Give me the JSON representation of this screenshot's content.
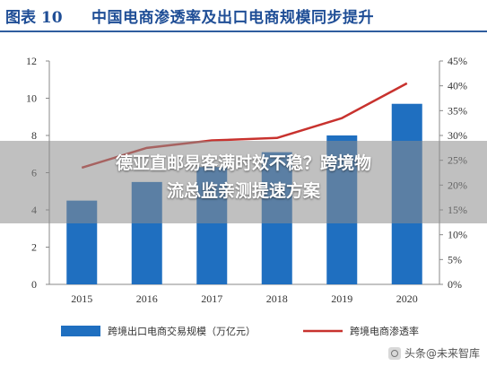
{
  "header": {
    "figure_label": "图表 10",
    "title": "中国电商渗透率及出口电商规模同步提升"
  },
  "overlay": {
    "line1": "德亚直邮易客满时效不稳？跨境物",
    "line2": "流总监亲测提速方案"
  },
  "watermark": {
    "text": "头条@未来智库"
  },
  "colors": {
    "bar": "#1f6fc0",
    "line": "#c8322e"
  },
  "chart_data": {
    "type": "bar",
    "categories": [
      "2015",
      "2016",
      "2017",
      "2018",
      "2019",
      "2020"
    ],
    "series": [
      {
        "name": "跨境出口电商交易规模（万亿元）",
        "type": "bar",
        "axis": "left",
        "values": [
          4.5,
          5.5,
          6.3,
          7.1,
          8.0,
          9.7
        ]
      },
      {
        "name": "跨境电商渗透率",
        "type": "line",
        "axis": "right",
        "values": [
          23.5,
          27.5,
          29.0,
          29.5,
          33.5,
          40.5
        ]
      }
    ],
    "left_axis": {
      "min": 0,
      "max": 12,
      "ticks": [
        "0",
        "2",
        "4",
        "6",
        "8",
        "10",
        "12"
      ]
    },
    "right_axis": {
      "min": 0,
      "max": 45,
      "ticks": [
        "0%",
        "5%",
        "10%",
        "15%",
        "20%",
        "25%",
        "30%",
        "35%",
        "40%",
        "45%"
      ]
    },
    "legend_position": "bottom",
    "grid": false
  }
}
